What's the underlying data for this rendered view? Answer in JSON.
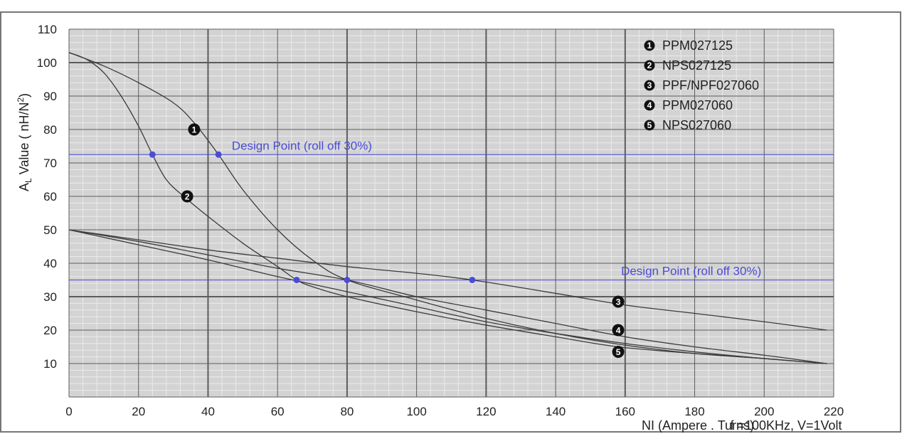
{
  "chart_data": {
    "type": "line",
    "title": "",
    "ylabel": "A",
    "ylabel_sub": "L",
    "ylabel_rest": " Value ( nH/N",
    "ylabel_sup": "2",
    "ylabel_end": ")",
    "xlabel": "NI (Ampere . Turns)",
    "condition": "f =100KHz, V=1Volt",
    "xlim": [
      0,
      220
    ],
    "ylim": [
      0,
      110
    ],
    "x_ticks": [
      0,
      20,
      40,
      60,
      80,
      100,
      120,
      140,
      160,
      180,
      200,
      220
    ],
    "y_ticks": [
      10,
      20,
      30,
      40,
      50,
      60,
      70,
      80,
      90,
      100,
      110
    ],
    "grid": true,
    "legend_position": "top-right",
    "series": [
      {
        "name": "PPM027125",
        "marker": "1",
        "points": [
          [
            0,
            103
          ],
          [
            10,
            99
          ],
          [
            20,
            94
          ],
          [
            30,
            88
          ],
          [
            36,
            82
          ],
          [
            43,
            72.5
          ],
          [
            50,
            62
          ],
          [
            60,
            50
          ],
          [
            70,
            41
          ],
          [
            80,
            35
          ],
          [
            100,
            29
          ],
          [
            120,
            23.5
          ],
          [
            140,
            19
          ],
          [
            160,
            15.5
          ],
          [
            180,
            13
          ],
          [
            200,
            11.5
          ],
          [
            218,
            10
          ]
        ]
      },
      {
        "name": "NPS027125",
        "marker": "2",
        "points": [
          [
            0,
            103
          ],
          [
            5,
            101
          ],
          [
            10,
            97
          ],
          [
            15,
            90
          ],
          [
            20,
            81
          ],
          [
            24,
            72.5
          ],
          [
            28,
            65
          ],
          [
            33,
            60
          ],
          [
            40,
            54
          ],
          [
            50,
            46
          ],
          [
            60,
            39
          ],
          [
            65.5,
            35
          ],
          [
            70,
            33
          ],
          [
            80,
            30
          ],
          [
            100,
            25.5
          ],
          [
            120,
            21.5
          ],
          [
            140,
            18
          ],
          [
            158,
            15
          ],
          [
            180,
            13
          ],
          [
            200,
            11.5
          ],
          [
            218,
            10
          ]
        ]
      },
      {
        "name": "PPF/NPF027060",
        "marker": "3",
        "points": [
          [
            0,
            50
          ],
          [
            20,
            47
          ],
          [
            40,
            44
          ],
          [
            60,
            41.5
          ],
          [
            80,
            39
          ],
          [
            100,
            37
          ],
          [
            116,
            35
          ],
          [
            140,
            31
          ],
          [
            160,
            27.5
          ],
          [
            180,
            25
          ],
          [
            200,
            22.5
          ],
          [
            218,
            20
          ]
        ]
      },
      {
        "name": "PPM027060",
        "marker": "4",
        "points": [
          [
            0,
            50
          ],
          [
            20,
            46.5
          ],
          [
            40,
            42.5
          ],
          [
            60,
            38.5
          ],
          [
            80,
            35
          ],
          [
            100,
            30
          ],
          [
            120,
            26
          ],
          [
            140,
            22
          ],
          [
            160,
            18
          ],
          [
            180,
            15
          ],
          [
            200,
            12.5
          ],
          [
            218,
            10
          ]
        ]
      },
      {
        "name": "NPS027060",
        "marker": "5",
        "points": [
          [
            0,
            50
          ],
          [
            20,
            45.5
          ],
          [
            40,
            41
          ],
          [
            60,
            36
          ],
          [
            80,
            31.5
          ],
          [
            100,
            27
          ],
          [
            120,
            22.5
          ],
          [
            140,
            19
          ],
          [
            160,
            16
          ],
          [
            180,
            13.5
          ],
          [
            200,
            11.5
          ],
          [
            218,
            10
          ]
        ]
      }
    ],
    "curve_markers": [
      {
        "label": "1",
        "x": 36,
        "y": 80
      },
      {
        "label": "2",
        "x": 34,
        "y": 60
      },
      {
        "label": "3",
        "x": 158,
        "y": 28.5
      },
      {
        "label": "4",
        "x": 158,
        "y": 20
      },
      {
        "label": "5",
        "x": 158,
        "y": 13.5
      }
    ],
    "design_lines": [
      {
        "text": "Design Point (roll off 30%)",
        "y": 72.5,
        "label_x": 67
      },
      {
        "text": "Design Point (roll off 30%)",
        "y": 35,
        "label_x": 179
      }
    ],
    "design_points": [
      [
        24,
        72.5
      ],
      [
        43,
        72.5
      ],
      [
        65.5,
        35
      ],
      [
        80,
        35
      ],
      [
        116,
        35
      ]
    ],
    "colors": {
      "plot_bg": "#d3d3d3",
      "major_grid": "#5c5c5c",
      "minor_grid": "#ebebeb",
      "curve": "#3c3c3c",
      "design": "#4b4bd8",
      "marker": "#111111"
    }
  }
}
